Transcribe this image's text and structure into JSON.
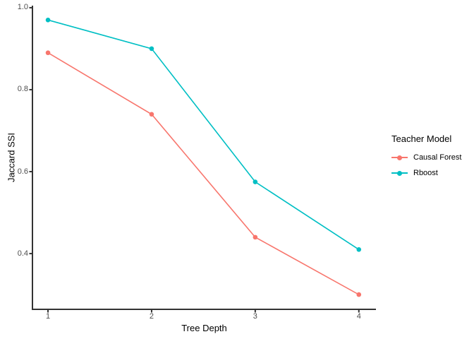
{
  "chart_data": {
    "type": "line",
    "title": "",
    "xlabel": "Tree Depth",
    "ylabel": "Jaccard SSI",
    "x": [
      1,
      2,
      3,
      4
    ],
    "x_tick_labels": [
      "1",
      "2",
      "3",
      "4"
    ],
    "y_tick_values": [
      1.0,
      0.8,
      0.6,
      0.4
    ],
    "y_tick_labels": [
      "1.0",
      "0.8",
      "0.6",
      "0.4"
    ],
    "xlim": [
      0.85,
      4.165
    ],
    "ylim": [
      0.264,
      1.005
    ],
    "grid": false,
    "legend_title": "Teacher Model",
    "legend_position": "right",
    "series": [
      {
        "name": "Causal Forest",
        "color": "#F8766D",
        "values": [
          0.89,
          0.74,
          0.44,
          0.3
        ]
      },
      {
        "name": "Rboost",
        "color": "#00BFC4",
        "values": [
          0.97,
          0.9,
          0.575,
          0.41
        ]
      }
    ]
  },
  "style": {
    "axis_line_color": "#333333",
    "tick_label_color": "#4D4D4D",
    "axis_title_color": "#000000",
    "legend_text_color": "#000000",
    "background": "#FFFFFF"
  }
}
